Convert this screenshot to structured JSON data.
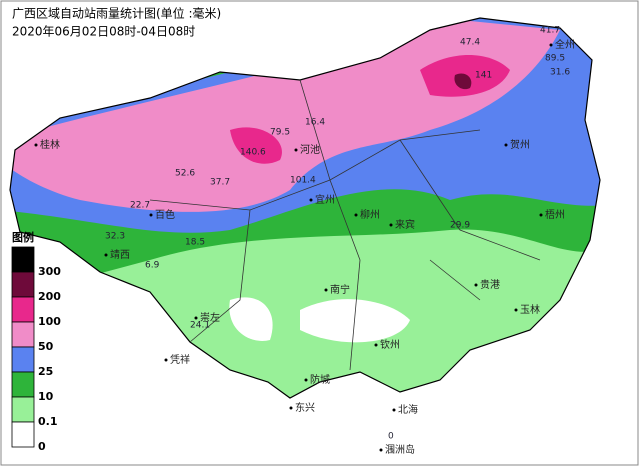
{
  "header": {
    "title": "广西区域自动站雨量统计图(单位 :毫米)",
    "subtitle": "2020年06月02日08时-04日08时"
  },
  "legend": {
    "title": "图例",
    "labels": [
      "300",
      "200",
      "100",
      "50",
      "25",
      "10",
      "0.1",
      "0"
    ],
    "colors": [
      "#000000",
      "#6e0a3a",
      "#e8288c",
      "#f08cc8",
      "#5a82f0",
      "#2eb43a",
      "#98f098",
      "#ffffff"
    ]
  },
  "places": [
    "桂林",
    "贺州",
    "河池",
    "百色",
    "柳州",
    "来宾",
    "梧州",
    "贵港",
    "玉林",
    "南宁",
    "崇左",
    "钦州",
    "北海",
    "防城",
    "东兴",
    "涠洲岛",
    "靖西",
    "凭祥",
    "宜州",
    "全州"
  ],
  "readings": [
    141,
    89.5,
    101.4,
    79.5,
    140.6,
    47.4,
    41.7,
    31.6,
    32.3,
    24.1,
    16.4,
    6.9,
    37.7,
    52.6,
    22.7,
    18.5,
    29.9,
    0
  ]
}
